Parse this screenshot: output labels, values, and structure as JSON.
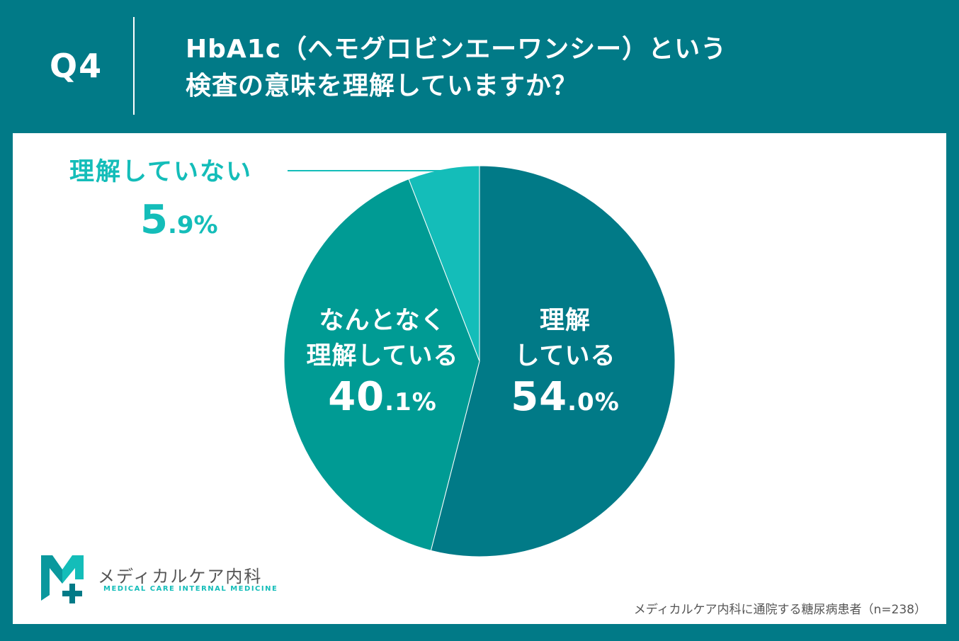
{
  "header": {
    "question_no": "Q4",
    "title_line1": "HbA1c（ヘモグロビンエーワンシー）という",
    "title_line2": "検査の意味を理解していますか？"
  },
  "colors": {
    "background": "#017a87",
    "slice_understand": "#017a87",
    "slice_somewhat": "#009b94",
    "slice_not": "#14bdb9"
  },
  "chart_data": {
    "type": "pie",
    "slices": [
      {
        "label": "理解している",
        "label_line1": "理解",
        "label_line2": "している",
        "value": 54.0,
        "int": "54",
        "dec": ".0%",
        "color": "#017a87"
      },
      {
        "label": "なんとなく理解している",
        "label_line1": "なんとなく",
        "label_line2": "理解している",
        "value": 40.1,
        "int": "40",
        "dec": ".1%",
        "color": "#009b94"
      },
      {
        "label": "理解していない",
        "label_line1": "理解していない",
        "value": 5.9,
        "int": "5",
        "dec": ".9%",
        "color": "#14bdb9"
      }
    ],
    "start": "top",
    "direction": "clockwise"
  },
  "logo": {
    "icon": "medical-cross-m-logo-icon",
    "name": "メディカルケア内科",
    "sub": "MEDICAL CARE INTERNAL MEDICINE"
  },
  "footnote": "メディカルケア内科に通院する糖尿病患者（n=238）"
}
